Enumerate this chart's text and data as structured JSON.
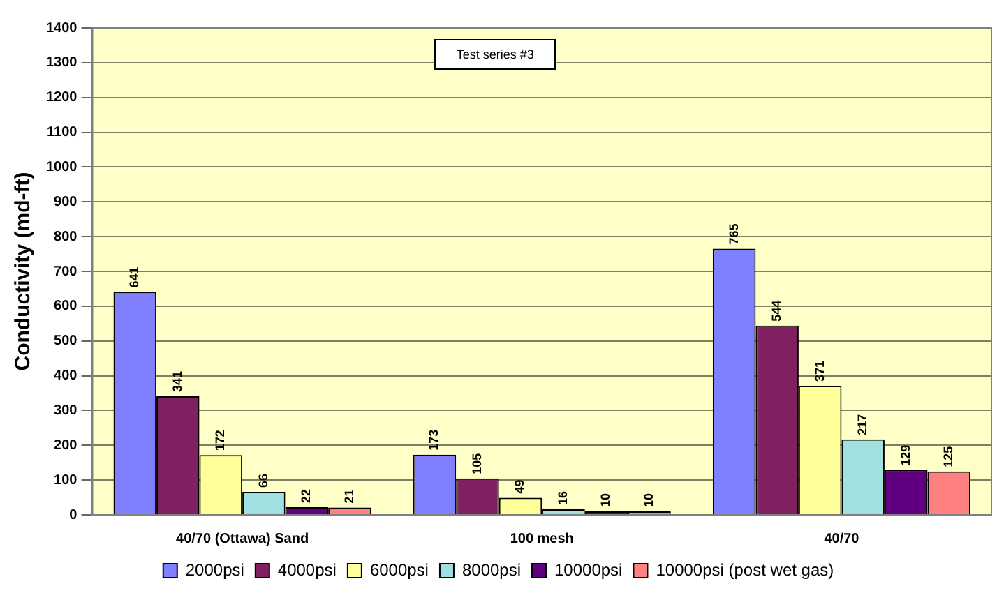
{
  "chart_data": {
    "type": "bar",
    "ylabel": "Conductivity (md-ft)",
    "categories": [
      "40/70 (Ottawa) Sand",
      "100 mesh",
      "40/70"
    ],
    "series": [
      {
        "name": "2000psi",
        "color": "#8080ff",
        "values": [
          641,
          173,
          765
        ]
      },
      {
        "name": "4000psi",
        "color": "#802060",
        "values": [
          341,
          105,
          544
        ]
      },
      {
        "name": "6000psi",
        "color": "#ffff99",
        "values": [
          172,
          49,
          371
        ]
      },
      {
        "name": "8000psi",
        "color": "#a0e0e0",
        "values": [
          66,
          16,
          217
        ]
      },
      {
        "name": "10000psi",
        "color": "#600080",
        "values": [
          22,
          10,
          129
        ]
      },
      {
        "name": "10000psi (post wet gas)",
        "color": "#ff8080",
        "values": [
          21,
          10,
          125
        ]
      }
    ],
    "ylim": [
      0,
      1400
    ],
    "yticks": [
      0,
      100,
      200,
      300,
      400,
      500,
      600,
      700,
      800,
      900,
      1000,
      1100,
      1200,
      1300,
      1400
    ],
    "grid": "y",
    "legend": "bottom",
    "data_labels": true,
    "annotations": [
      "Test series #3"
    ]
  }
}
